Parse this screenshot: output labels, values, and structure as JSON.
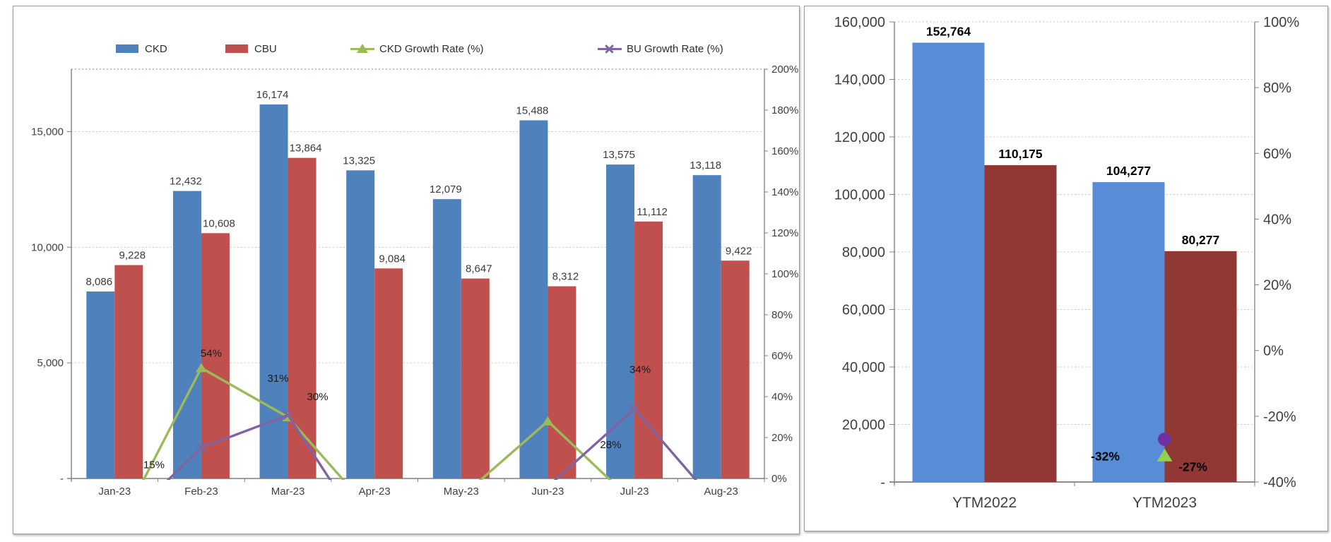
{
  "page": {
    "background": "#ffffff"
  },
  "chart_data": [
    {
      "type": "bar-line-combo",
      "title": "Monthly CKD vs CBU volumes with growth rates",
      "categories": [
        "Jan-23",
        "Feb-23",
        "Mar-23",
        "Apr-23",
        "May-23",
        "Jun-23",
        "Jul-23",
        "Aug-23"
      ],
      "bar_series": [
        {
          "name": "CKD",
          "color": "#4F81BD",
          "values": [
            8086,
            12432,
            16174,
            13325,
            12079,
            15488,
            13575,
            13118
          ],
          "labels": [
            "8,086",
            "12,432",
            "16,174",
            "13,325",
            "12,079",
            "15,488",
            "13,575",
            "13,118"
          ]
        },
        {
          "name": "CBU",
          "color": "#C0504D",
          "values": [
            9228,
            10608,
            13864,
            9084,
            8647,
            8312,
            11112,
            9422
          ],
          "labels": [
            "9,228",
            "10,608",
            "13,864",
            "9,084",
            "8,647",
            "8,312",
            "11,112",
            "9,422"
          ]
        }
      ],
      "line_series": [
        {
          "name": "CKD Growth Rate (%)",
          "color": "#9BBB59",
          "marker": "triangle",
          "values_pct": [
            -28,
            54,
            30,
            -18,
            -9,
            28,
            -12,
            -3
          ],
          "point_labels": [
            null,
            "54%",
            "30%",
            null,
            null,
            "28%",
            null,
            null
          ]
        },
        {
          "name": "BU Growth Rate (%)",
          "color": "#8064A2",
          "marker": "x",
          "values_pct": [
            -26,
            15,
            31,
            -34,
            -5,
            -4,
            34,
            -15
          ],
          "point_labels": [
            null,
            "15%",
            "31%",
            null,
            null,
            null,
            "34%",
            null
          ]
        }
      ],
      "legend": [
        {
          "label": "CKD",
          "swatch": "bar",
          "color": "#4F81BD"
        },
        {
          "label": "CBU",
          "swatch": "bar",
          "color": "#C0504D"
        },
        {
          "label": "CKD Growth Rate (%)",
          "swatch": "line-triangle",
          "color": "#9BBB59"
        },
        {
          "label": "BU Growth Rate (%)",
          "swatch": "line-x",
          "color": "#8064A2"
        }
      ],
      "left_axis": {
        "tick_values": [
          0,
          5000,
          10000,
          15000
        ],
        "tick_labels": [
          "-",
          "5,000",
          "10,000",
          "15,000"
        ],
        "max": 17700
      },
      "right_axis": {
        "tick_values": [
          0,
          20,
          40,
          60,
          80,
          100,
          120,
          140,
          160,
          180,
          200
        ],
        "tick_labels": [
          "0%",
          "20%",
          "40%",
          "60%",
          "80%",
          "100%",
          "120%",
          "140%",
          "160%",
          "180%",
          "200%"
        ],
        "min": 0,
        "max": 200
      },
      "grid": "dotted"
    },
    {
      "type": "bar",
      "title": "YTD comparison",
      "categories": [
        "YTM2022",
        "YTM2023"
      ],
      "bar_series": [
        {
          "name": "CKD",
          "color": "#588CD6",
          "values": [
            152764,
            104277
          ],
          "labels": [
            "152,764",
            "104,277"
          ]
        },
        {
          "name": "CBU",
          "color": "#923834",
          "values": [
            110175,
            80277
          ],
          "labels": [
            "110,175",
            "80,277"
          ]
        }
      ],
      "markers": [
        {
          "shape": "triangle",
          "color": "#92D050",
          "category_index": 1,
          "value_pct": -32,
          "label": "-32%"
        },
        {
          "shape": "circle",
          "color": "#7030A0",
          "category_index": 1,
          "value_pct": -27,
          "label": "-27%"
        }
      ],
      "left_axis": {
        "tick_values": [
          0,
          20000,
          40000,
          60000,
          80000,
          100000,
          120000,
          140000,
          160000
        ],
        "tick_labels": [
          "-",
          "20,000",
          "40,000",
          "60,000",
          "80,000",
          "100,000",
          "120,000",
          "140,000",
          "160,000"
        ],
        "max": 160000
      },
      "right_axis": {
        "tick_values": [
          -40,
          -20,
          0,
          20,
          40,
          60,
          80,
          100
        ],
        "tick_labels": [
          "-40%",
          "-20%",
          "0%",
          "20%",
          "40%",
          "60%",
          "80%",
          "100%"
        ],
        "min": -40,
        "max": 100
      },
      "grid": "dotted"
    }
  ]
}
